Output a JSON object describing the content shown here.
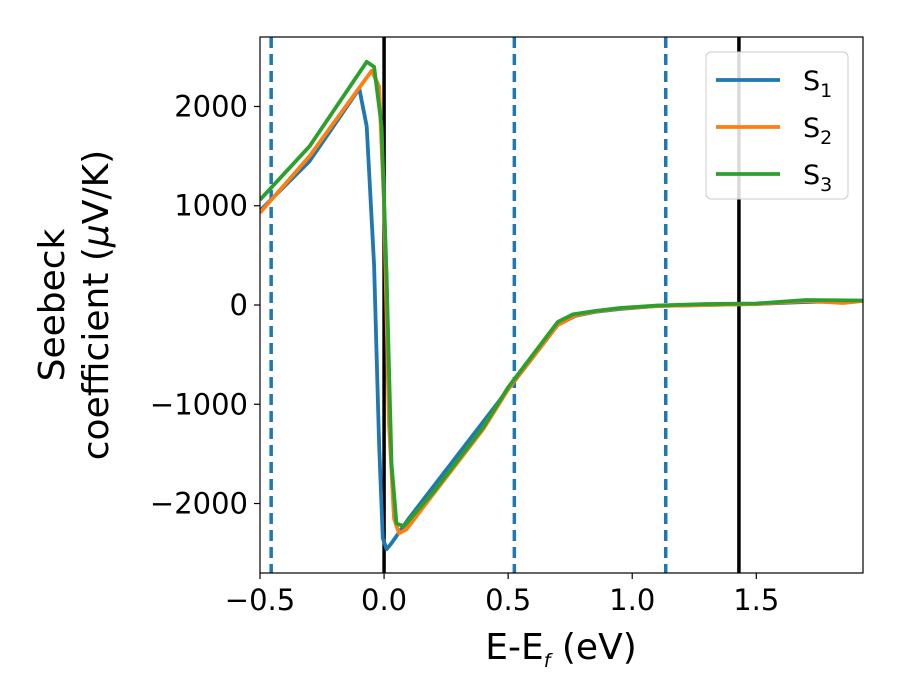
{
  "chart_data": {
    "type": "line",
    "xlabel_main": "E-E",
    "xlabel_sub": "f",
    "xlabel_tail": " (eV)",
    "ylabel_line1": "Seebeck",
    "ylabel_line2_text": "coefficient  (",
    "ylabel_line2_mu": "μ",
    "ylabel_line2_tail": "V/K)",
    "xlim": [
      -0.5,
      1.93
    ],
    "ylim": [
      -2700,
      2700
    ],
    "xticks": [
      -0.5,
      0.0,
      0.5,
      1.0,
      1.5
    ],
    "xtick_labels": [
      "−0.5",
      "0.0",
      "0.5",
      "1.0",
      "1.5"
    ],
    "yticks": [
      -2000,
      -1000,
      0,
      1000,
      2000
    ],
    "ytick_labels": [
      "−2000",
      "−1000",
      "0",
      "1000",
      "2000"
    ],
    "grid": false,
    "legend_position": "top-right",
    "vlines_dashed": [
      -0.455,
      0.525,
      1.135
    ],
    "vlines_solid": [
      0.0,
      1.43
    ],
    "vline_dashed_color": "#1f77b4",
    "vline_solid_color": "#000000",
    "series": [
      {
        "name": "S",
        "sub": "1",
        "color": "#1f77b4",
        "points": [
          [
            -0.5,
            950
          ],
          [
            -0.3,
            1450
          ],
          [
            -0.1,
            2180
          ],
          [
            -0.07,
            1800
          ],
          [
            -0.04,
            400
          ],
          [
            -0.02,
            -1400
          ],
          [
            -0.005,
            -2350
          ],
          [
            0.01,
            -2460
          ],
          [
            0.03,
            -2400
          ],
          [
            0.1,
            -2150
          ],
          [
            0.3,
            -1500
          ],
          [
            0.5,
            -850
          ],
          [
            0.7,
            -200
          ],
          [
            0.77,
            -110
          ],
          [
            0.85,
            -70
          ],
          [
            0.95,
            -40
          ],
          [
            1.1,
            -10
          ],
          [
            1.3,
            0
          ],
          [
            1.5,
            10
          ],
          [
            1.7,
            30
          ],
          [
            1.93,
            40
          ]
        ]
      },
      {
        "name": "S",
        "sub": "2",
        "color": "#ff7f0e",
        "points": [
          [
            -0.5,
            930
          ],
          [
            -0.3,
            1500
          ],
          [
            -0.05,
            2360
          ],
          [
            -0.02,
            2200
          ],
          [
            0.0,
            1000
          ],
          [
            0.02,
            -1200
          ],
          [
            0.04,
            -2150
          ],
          [
            0.06,
            -2300
          ],
          [
            0.09,
            -2260
          ],
          [
            0.2,
            -1900
          ],
          [
            0.4,
            -1250
          ],
          [
            0.5,
            -850
          ],
          [
            0.7,
            -200
          ],
          [
            0.77,
            -105
          ],
          [
            0.85,
            -65
          ],
          [
            0.95,
            -35
          ],
          [
            1.1,
            -10
          ],
          [
            1.3,
            0
          ],
          [
            1.5,
            10
          ],
          [
            1.7,
            40
          ],
          [
            1.85,
            20
          ],
          [
            1.93,
            40
          ]
        ]
      },
      {
        "name": "S",
        "sub": "3",
        "color": "#2ca02c",
        "points": [
          [
            -0.5,
            1060
          ],
          [
            -0.3,
            1600
          ],
          [
            -0.07,
            2450
          ],
          [
            -0.04,
            2400
          ],
          [
            -0.01,
            1800
          ],
          [
            0.01,
            300
          ],
          [
            0.03,
            -1600
          ],
          [
            0.05,
            -2200
          ],
          [
            0.08,
            -2230
          ],
          [
            0.2,
            -1880
          ],
          [
            0.4,
            -1230
          ],
          [
            0.5,
            -830
          ],
          [
            0.7,
            -170
          ],
          [
            0.76,
            -95
          ],
          [
            0.85,
            -60
          ],
          [
            0.95,
            -30
          ],
          [
            1.1,
            -5
          ],
          [
            1.3,
            10
          ],
          [
            1.5,
            15
          ],
          [
            1.7,
            50
          ],
          [
            1.93,
            45
          ]
        ]
      }
    ]
  }
}
